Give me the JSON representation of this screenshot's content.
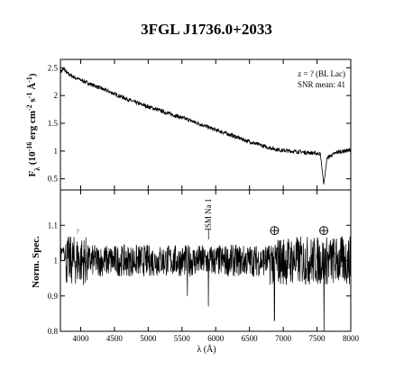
{
  "chart_data": [
    {
      "type": "line",
      "title": "3FGL J1736.0+2033",
      "ylabel_main": "F",
      "ylabel_sub": "λ",
      "ylabel_rest": " (10",
      "ylabel_exp1": "-16",
      "ylabel_unit": " erg cm",
      "ylabel_exp2": "-2",
      "ylabel_unit2": " s",
      "ylabel_exp3": "-1",
      "ylabel_unit3": " Å",
      "ylabel_exp4": "-1",
      "ylabel_close": ")",
      "annotation_1": "z = ? (BL Lac)",
      "annotation_2": "SNR mean: 41",
      "xlim": [
        3700,
        8000
      ],
      "ylim": [
        0.3,
        2.65
      ],
      "yticks": [
        "0.5",
        "1",
        "1.5",
        "2",
        "2.5"
      ],
      "ytick_values": [
        0.5,
        1,
        1.5,
        2,
        2.5
      ],
      "series": [
        {
          "x": [
            3700,
            3750,
            3800,
            3900,
            4000,
            4200,
            4400,
            4600,
            4800,
            5000,
            5200,
            5400,
            5600,
            5800,
            6000,
            6200,
            6400,
            6600,
            6800,
            6900,
            7000,
            7200,
            7400,
            7550,
            7600,
            7650,
            7800,
            8000
          ],
          "y": [
            2.42,
            2.48,
            2.4,
            2.33,
            2.28,
            2.18,
            2.08,
            1.98,
            1.88,
            1.8,
            1.72,
            1.64,
            1.56,
            1.47,
            1.38,
            1.3,
            1.21,
            1.13,
            1.06,
            1.03,
            1.01,
            0.99,
            0.97,
            0.95,
            0.4,
            0.88,
            0.98,
            1.02
          ]
        }
      ]
    },
    {
      "type": "line",
      "ylabel": "Norm. Spec.",
      "xlabel": "λ (Å)",
      "xlim": [
        3700,
        8000
      ],
      "ylim": [
        0.8,
        1.2
      ],
      "xticks": [
        "4000",
        "4500",
        "5000",
        "5500",
        "6000",
        "6500",
        "7000",
        "7500",
        "8000"
      ],
      "xtick_values": [
        4000,
        4500,
        5000,
        5500,
        6000,
        6500,
        7000,
        7500,
        8000
      ],
      "yticks": [
        "0.8",
        "0.9",
        "1",
        "1.1"
      ],
      "ytick_values": [
        0.8,
        0.9,
        1.0,
        1.1
      ],
      "annotation_question": "?",
      "annotation_question_x": 3930,
      "annotation_ism": "ISM Na 1",
      "annotation_ism_x": 5893,
      "telluric_x": [
        6870,
        7600
      ],
      "absorption_lines": [
        {
          "x": 5580,
          "y": 0.9
        },
        {
          "x": 5893,
          "y": 0.87
        },
        {
          "x": 6870,
          "y": 0.83
        },
        {
          "x": 7605,
          "y": 0.8
        }
      ],
      "series": [
        {
          "x": [
            3700,
            8000
          ],
          "y": [
            1.0,
            1.0
          ]
        }
      ]
    }
  ]
}
